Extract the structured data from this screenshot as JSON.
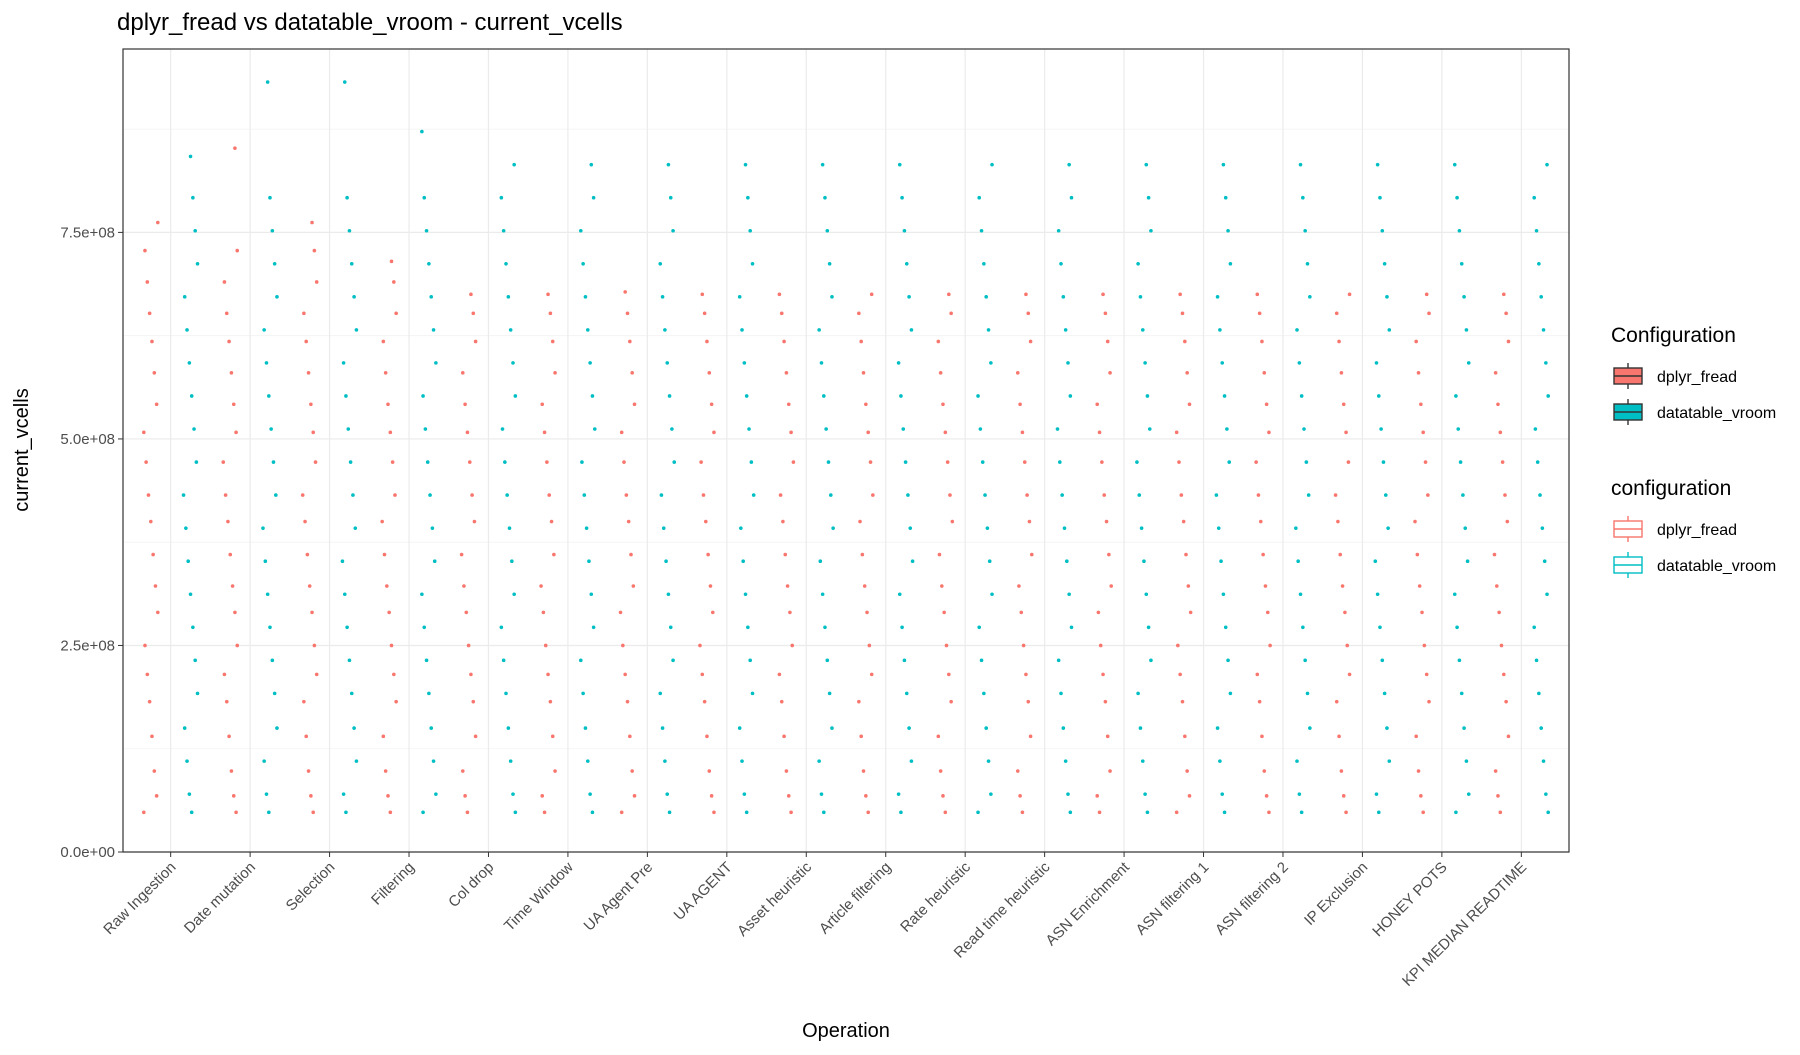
{
  "chart_data": {
    "type": "scatter",
    "title": "dplyr_fread vs datatable_vroom - current_vcells",
    "xlabel": "Operation",
    "ylabel": "current_vcells",
    "ylim": [
      0,
      972000000
    ],
    "y_ticks": [
      {
        "value": 0,
        "label": "0.0e+00"
      },
      {
        "value": 250000000,
        "label": "2.5e+08"
      },
      {
        "value": 500000000,
        "label": "5.0e+08"
      },
      {
        "value": 750000000,
        "label": "7.5e+08"
      }
    ],
    "grid": true,
    "legend_position": "right",
    "categories": [
      "Raw Ingestion",
      "Date mutation",
      "Selection",
      "Filtering",
      "Col drop",
      "Time Window",
      "UA Agent Pre",
      "UA AGENT",
      "Asset heuristic",
      "Article filtering",
      "Rate heuristic",
      "Read time heuristic",
      "ASN Enrichment",
      "ASN filtering 1",
      "ASN filtering 2",
      "IP Exclusion",
      "HONEY POTS",
      "KPI MEDIAN READTIME"
    ],
    "legends": [
      {
        "title": "Configuration",
        "style": "filled",
        "items": [
          {
            "label": "dplyr_fread",
            "color": "#F8766D"
          },
          {
            "label": "datatable_vroom",
            "color": "#00BFC4"
          }
        ]
      },
      {
        "title": "configuration",
        "style": "outline",
        "items": [
          {
            "label": "dplyr_fread",
            "color": "#F8766D"
          },
          {
            "label": "datatable_vroom",
            "color": "#00BFC4"
          }
        ]
      }
    ],
    "series": [
      {
        "name": "dplyr_fread",
        "color": "#F8766D",
        "offset": -0.25,
        "max_by_category": [
          762000000,
          852000000,
          762000000,
          715000000,
          675000000,
          675000000,
          678000000,
          675000000,
          675000000,
          675000000,
          675000000,
          675000000,
          675000000,
          675000000,
          675000000,
          675000000,
          675000000,
          675000000
        ],
        "values": [
          48000000,
          68000000,
          98000000,
          140000000,
          182000000,
          215000000,
          250000000,
          290000000,
          322000000,
          360000000,
          400000000,
          432000000,
          472000000,
          508000000,
          542000000,
          580000000,
          618000000,
          652000000,
          690000000,
          728000000
        ]
      },
      {
        "name": "datatable_vroom",
        "color": "#00BFC4",
        "offset": 0.25,
        "max_by_category": [
          842000000,
          932000000,
          932000000,
          872000000,
          832000000,
          832000000,
          832000000,
          832000000,
          832000000,
          832000000,
          832000000,
          832000000,
          832000000,
          832000000,
          832000000,
          832000000,
          832000000,
          832000000
        ],
        "values": [
          48000000,
          70000000,
          110000000,
          150000000,
          192000000,
          232000000,
          272000000,
          312000000,
          352000000,
          392000000,
          432000000,
          472000000,
          512000000,
          552000000,
          592000000,
          632000000,
          672000000,
          712000000,
          752000000,
          792000000
        ]
      }
    ]
  }
}
